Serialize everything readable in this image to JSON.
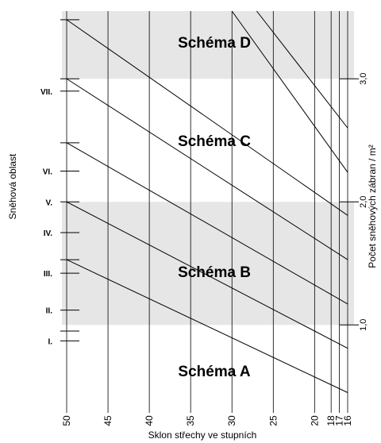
{
  "chart_data": {
    "type": "line",
    "title": "",
    "xlabel": "Sklon střechy ve stupních",
    "ylabel_left": "Sněhová oblast",
    "ylabel_right": "Počet sněhových zábran / m²",
    "x_ticks": [
      50,
      45,
      40,
      35,
      30,
      25,
      20,
      18,
      17,
      16
    ],
    "x_range": [
      50,
      16
    ],
    "right_ticks": [
      {
        "value": 1.0,
        "label": "1,0"
      },
      {
        "value": 2.0,
        "label": "2,0"
      },
      {
        "value": 3.0,
        "label": "3,0"
      }
    ],
    "right_range": [
      0.35,
      3.55
    ],
    "zones": [
      {
        "label": "Schéma A",
        "from": 0.35,
        "to": 1.0,
        "shaded": false
      },
      {
        "label": "Schéma B",
        "from": 1.0,
        "to": 2.0,
        "shaded": true
      },
      {
        "label": "Schéma C",
        "from": 2.0,
        "to": 3.0,
        "shaded": false
      },
      {
        "label": "Schéma D",
        "from": 3.0,
        "to": 3.55,
        "shaded": true
      }
    ],
    "snow_regions": [
      {
        "label": "I.",
        "value": 0.87
      },
      {
        "label": "II.",
        "value": 1.12
      },
      {
        "label": "III.",
        "value": 1.42
      },
      {
        "label": "IV.",
        "value": 1.75
      },
      {
        "label": "V.",
        "value": 2.0
      },
      {
        "label": "VI.",
        "value": 2.25
      },
      {
        "label": "VII.",
        "value": 2.9
      }
    ],
    "unlabeled_left_ticks": [
      0.95,
      1.53,
      2.48,
      3.0,
      3.48
    ],
    "series": [
      {
        "x": [
          50,
          16
        ],
        "values": [
          1.53,
          0.45
        ]
      },
      {
        "x": [
          50,
          16
        ],
        "values": [
          2.0,
          0.81
        ]
      },
      {
        "x": [
          50,
          16
        ],
        "values": [
          2.48,
          1.17
        ]
      },
      {
        "x": [
          50,
          16
        ],
        "values": [
          3.0,
          1.53
        ]
      },
      {
        "x": [
          50,
          16
        ],
        "values": [
          3.48,
          1.89
        ]
      },
      {
        "x": [
          30,
          16
        ],
        "values": [
          3.55,
          2.24
        ]
      },
      {
        "x": [
          27,
          16
        ],
        "values": [
          3.55,
          2.6
        ]
      }
    ]
  }
}
